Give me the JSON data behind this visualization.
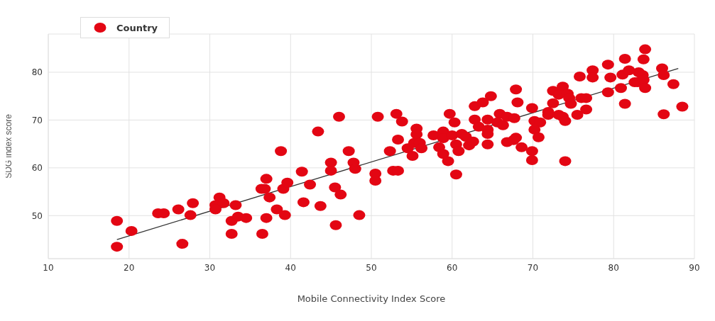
{
  "chart_data": {
    "type": "scatter",
    "xlabel": "Mobile Connectivity Index Score",
    "ylabel": "SDG index score",
    "xlim": [
      10,
      90
    ],
    "xticks": [
      10,
      20,
      30,
      40,
      50,
      60,
      70,
      80,
      90
    ],
    "ylim": [
      41,
      88
    ],
    "yticks": [
      50,
      60,
      70,
      80
    ],
    "grid": true,
    "legend": "top left",
    "series": [
      {
        "name": "Country",
        "color": "#e30613",
        "marker": "circle",
        "x": [
          18.5,
          20.3,
          18.5,
          26.6,
          23.6,
          24.3,
          26.1,
          27.9,
          27.6,
          31.2,
          30.7,
          31.7,
          30.7,
          33.2,
          32.7,
          33.5,
          32.7,
          34.5,
          37.0,
          36.5,
          38.3,
          39.3,
          37.4,
          37.0,
          36.4,
          36.8,
          39.1,
          39.6,
          38.8,
          41.4,
          42.4,
          41.6,
          43.7,
          43.4,
          45.0,
          45.0,
          45.5,
          46.2,
          45.6,
          46.0,
          47.2,
          47.8,
          48.0,
          48.5,
          50.5,
          50.5,
          50.8,
          53.1,
          53.8,
          53.3,
          52.3,
          52.7,
          53.3,
          54.5,
          55.1,
          55.6,
          55.6,
          55.3,
          56.0,
          56.2,
          57.7,
          58.4,
          58.9,
          58.9,
          58.9,
          59.5,
          59.7,
          60.3,
          60.0,
          60.5,
          60.8,
          60.5,
          61.2,
          61.7,
          62.1,
          62.6,
          62.8,
          62.8,
          63.3,
          63.8,
          64.4,
          64.4,
          64.4,
          64.4,
          64.8,
          65.9,
          65.6,
          66.3,
          66.8,
          67.7,
          66.8,
          67.9,
          67.6,
          67.9,
          68.1,
          68.6,
          69.9,
          70.2,
          70.9,
          70.2,
          70.7,
          69.9,
          69.9,
          71.9,
          71.9,
          72.5,
          72.5,
          73.2,
          73.7,
          74.0,
          73.7,
          73.2,
          74.3,
          74.5,
          74.7,
          74.0,
          75.5,
          76.6,
          76.0,
          76.6,
          75.8,
          77.4,
          77.4,
          79.3,
          79.3,
          79.6,
          80.9,
          81.1,
          81.4,
          81.4,
          81.9,
          82.6,
          83.0,
          83.1,
          83.6,
          83.7,
          83.7,
          83.9,
          83.9,
          86.0,
          86.2,
          86.2,
          87.4,
          88.5
        ],
        "values": [
          48.9,
          46.8,
          43.5,
          44.1,
          50.5,
          50.5,
          51.3,
          52.6,
          50.1,
          53.8,
          52.2,
          52.6,
          51.3,
          52.2,
          48.9,
          49.8,
          46.2,
          49.5,
          49.5,
          46.2,
          51.3,
          50.1,
          53.8,
          57.7,
          55.6,
          55.6,
          55.6,
          56.9,
          63.5,
          59.2,
          56.5,
          52.8,
          52.0,
          67.6,
          61.1,
          59.4,
          55.9,
          54.4,
          48.0,
          70.7,
          63.5,
          61.1,
          59.8,
          50.1,
          58.8,
          57.3,
          70.7,
          71.3,
          69.7,
          65.9,
          63.5,
          59.4,
          59.4,
          64.1,
          62.5,
          68.2,
          67.0,
          65.2,
          65.2,
          64.1,
          66.8,
          64.3,
          67.6,
          66.2,
          62.9,
          61.4,
          71.3,
          69.5,
          66.8,
          64.9,
          63.5,
          58.6,
          67.1,
          66.5,
          64.7,
          65.5,
          72.9,
          70.1,
          68.6,
          73.7,
          70.1,
          68.0,
          67.1,
          64.9,
          75.0,
          71.3,
          69.5,
          68.9,
          70.7,
          70.4,
          65.4,
          66.3,
          65.8,
          76.4,
          73.7,
          64.3,
          72.5,
          69.8,
          69.5,
          68.0,
          66.4,
          63.5,
          61.6,
          71.7,
          71.1,
          76.1,
          73.5,
          71.1,
          70.7,
          69.8,
          77.0,
          75.3,
          75.5,
          74.6,
          73.4,
          61.4,
          71.1,
          72.2,
          74.6,
          74.6,
          79.1,
          80.4,
          78.9,
          81.6,
          75.8,
          78.9,
          76.7,
          79.5,
          82.8,
          73.4,
          80.4,
          77.9,
          77.9,
          80.0,
          79.4,
          78.4,
          82.7,
          84.8,
          76.7,
          80.8,
          79.4,
          71.2,
          77.5,
          72.8
        ]
      },
      {
        "color": "#333333",
        "type": "line",
        "x": [
          18.5,
          88.0
        ],
        "values": [
          45.0,
          80.8
        ]
      }
    ]
  }
}
